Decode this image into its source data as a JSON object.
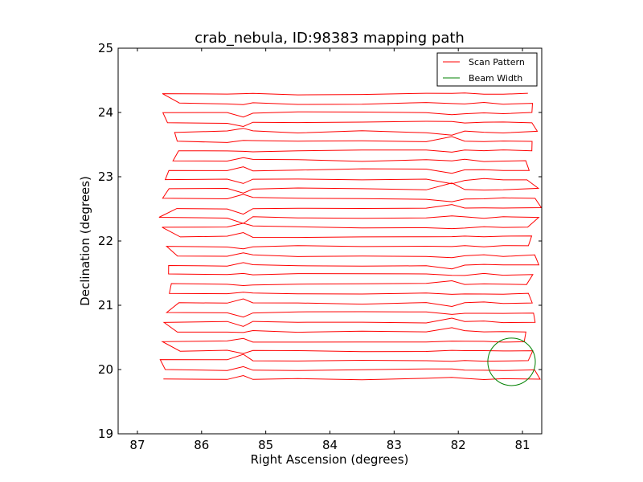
{
  "chart_data": {
    "type": "line",
    "title": "crab_nebula, ID:98383 mapping path",
    "xlabel": "Right Ascension (degrees)",
    "ylabel": "Declination (degrees)",
    "xlim": [
      87.3,
      80.7
    ],
    "ylim": [
      19,
      25
    ],
    "x_ticks": [
      87,
      86,
      85,
      84,
      83,
      82,
      81
    ],
    "y_ticks": [
      19,
      20,
      21,
      22,
      23,
      24,
      25
    ],
    "x_ticks_labels": [
      "87",
      "86",
      "85",
      "84",
      "83",
      "82",
      "81"
    ],
    "y_ticks_labels": [
      "19",
      "20",
      "21",
      "22",
      "23",
      "24",
      "25"
    ],
    "grid": false,
    "legend_position": "top-right",
    "series": [
      {
        "name": "Scan Pattern",
        "color": "#ff0000",
        "style": "boustrophedon-raster",
        "ra_start": 86.5,
        "ra_end": 80.8,
        "dec_start": 19.85,
        "dec_end": 24.28,
        "row_step": 0.148
      },
      {
        "name": "Beam Width",
        "color": "#008000",
        "center_ra": 81.17,
        "center_dec": 20.12,
        "radius_deg": 0.37
      }
    ]
  }
}
